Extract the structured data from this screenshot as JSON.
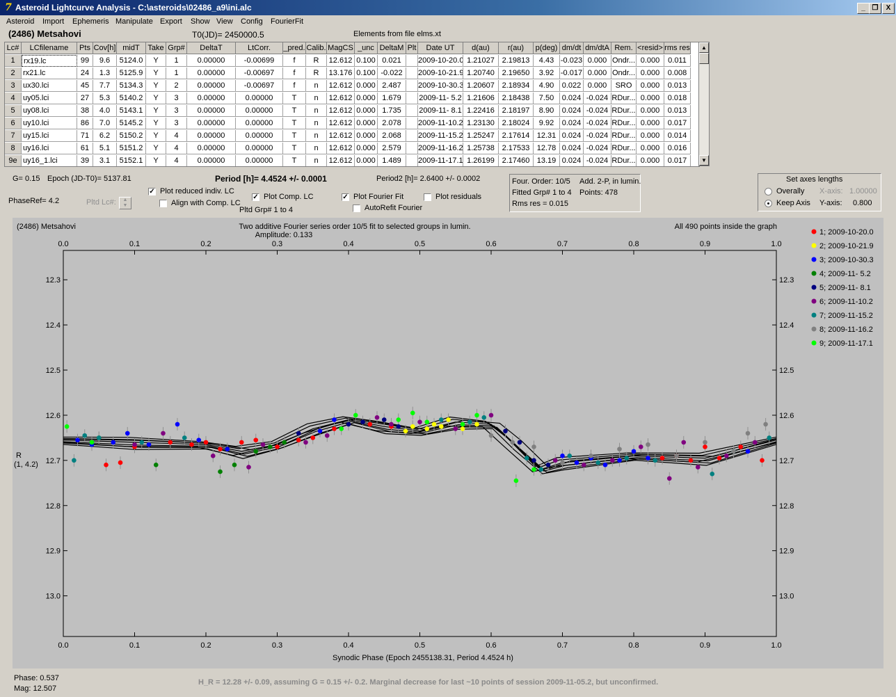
{
  "window": {
    "title": "Asteroid Lightcurve Analysis - C:\\asteroids\\02486_a9\\ini.alc",
    "app_icon_glyph": "7",
    "min_glyph": "_",
    "max_glyph": "❐",
    "close_glyph": "X"
  },
  "menu": [
    "Asteroid",
    "Import",
    "Ephemeris",
    "Manipulate",
    "Export",
    "Show",
    "View",
    "Config",
    "FourierFit"
  ],
  "header": {
    "object": "(2486) Metsahovi",
    "t0": "T0(JD)= 2450000.5",
    "elements": "Elements from file elms.xt"
  },
  "table": {
    "columns": [
      "Lc#",
      "LCfilename",
      "Pts",
      "Cov[h]",
      "midT",
      "Take",
      "Grp#",
      "DeltaT",
      "LtCorr.",
      "_pred.",
      "Calib.",
      "MagCS",
      "_unc",
      "DeltaM",
      "Plt",
      "Date UT",
      "d(au)",
      "r(au)",
      "p(deg)",
      "dm/dt",
      "dm/dtA",
      "Rem.",
      "<resid>",
      "rms res"
    ],
    "rows": [
      [
        "1",
        "rx19.lc",
        "99",
        "9.6",
        "5124.0",
        "Y",
        "1",
        "0.00000",
        "-0.00699",
        "f",
        "R",
        "12.612",
        "0.100",
        "0.021",
        "",
        "2009-10-20.0",
        "1.21027",
        "2.19813",
        "4.43",
        "-0.023",
        "0.000",
        "Ondr...",
        "0.000",
        "0.011"
      ],
      [
        "2",
        "rx21.lc",
        "24",
        "1.3",
        "5125.9",
        "Y",
        "1",
        "0.00000",
        "-0.00697",
        "f",
        "R",
        "13.176",
        "0.100",
        "-0.022",
        "",
        "2009-10-21.9",
        "1.20740",
        "2.19650",
        "3.92",
        "-0.017",
        "0.000",
        "Ondr...",
        "0.000",
        "0.008"
      ],
      [
        "3",
        "ux30.lci",
        "45",
        "7.7",
        "5134.3",
        "Y",
        "2",
        "0.00000",
        "-0.00697",
        "f",
        "n",
        "12.612",
        "0.000",
        "2.487",
        "",
        "2009-10-30.3",
        "1.20607",
        "2.18934",
        "4.90",
        "0.022",
        "0.000",
        "SRO",
        "0.000",
        "0.013"
      ],
      [
        "4",
        "uy05.lci",
        "27",
        "5.3",
        "5140.2",
        "Y",
        "3",
        "0.00000",
        "0.00000",
        "T",
        "n",
        "12.612",
        "0.000",
        "1.679",
        "",
        "2009-11- 5.2",
        "1.21606",
        "2.18438",
        "7.50",
        "0.024",
        "-0.024",
        "RDur...",
        "0.000",
        "0.018"
      ],
      [
        "5",
        "uy08.lci",
        "38",
        "4.0",
        "5143.1",
        "Y",
        "3",
        "0.00000",
        "0.00000",
        "T",
        "n",
        "12.612",
        "0.000",
        "1.735",
        "",
        "2009-11- 8.1",
        "1.22416",
        "2.18197",
        "8.90",
        "0.024",
        "-0.024",
        "RDur...",
        "0.000",
        "0.013"
      ],
      [
        "6",
        "uy10.lci",
        "86",
        "7.0",
        "5145.2",
        "Y",
        "3",
        "0.00000",
        "0.00000",
        "T",
        "n",
        "12.612",
        "0.000",
        "2.078",
        "",
        "2009-11-10.2",
        "1.23130",
        "2.18024",
        "9.92",
        "0.024",
        "-0.024",
        "RDur...",
        "0.000",
        "0.017"
      ],
      [
        "7",
        "uy15.lci",
        "71",
        "6.2",
        "5150.2",
        "Y",
        "4",
        "0.00000",
        "0.00000",
        "T",
        "n",
        "12.612",
        "0.000",
        "2.068",
        "",
        "2009-11-15.2",
        "1.25247",
        "2.17614",
        "12.31",
        "0.024",
        "-0.024",
        "RDur...",
        "0.000",
        "0.014"
      ],
      [
        "8",
        "uy16.lci",
        "61",
        "5.1",
        "5151.2",
        "Y",
        "4",
        "0.00000",
        "0.00000",
        "T",
        "n",
        "12.612",
        "0.000",
        "2.579",
        "",
        "2009-11-16.2",
        "1.25738",
        "2.17533",
        "12.78",
        "0.024",
        "-0.024",
        "RDur...",
        "0.000",
        "0.016"
      ],
      [
        "9e",
        "uy16_1.lci",
        "39",
        "3.1",
        "5152.1",
        "Y",
        "4",
        "0.00000",
        "0.00000",
        "T",
        "n",
        "12.612",
        "0.000",
        "1.489",
        "",
        "2009-11-17.1",
        "1.26199",
        "2.17460",
        "13.19",
        "0.024",
        "-0.024",
        "RDur...",
        "0.000",
        "0.017"
      ]
    ]
  },
  "controls": {
    "g": "G= 0.15",
    "epoch": "Epoch (JD-T0)= 5137.81",
    "period": "Period [h]= 4.4524 +/- 0.0001",
    "period2": "Period2 [h]= 2.6400 +/- 0.0002",
    "phaseref": "PhaseRef= 4.2",
    "pltd_lc": "Pltd Lc#:",
    "plot_reduced": "Plot reduced indiv. LC",
    "align_comp": "Align with Comp. LC",
    "plot_comp": "Plot Comp. LC",
    "pltd_grp": "Pltd Grp#  1   to   4",
    "plot_fourier": "Plot Fourier Fit",
    "autorefit": "AutoRefit Fourier",
    "plot_residuals": "Plot residuals",
    "check_glyph": "✓",
    "spin_up": "▲",
    "spin_down": "▼"
  },
  "fourier_info": {
    "order": "Four. Order: 10/5",
    "add": "Add. 2-P, in lumin.",
    "fitted": "Fitted Grp# 1 to 4",
    "points": "Points: 478",
    "rms": "Rms res     = 0.015"
  },
  "axes_box": {
    "title": "Set axes lengths",
    "overally": "Overally",
    "keep_axis": "Keep Axis",
    "x_label": "X-axis:",
    "x_value": "1.00000",
    "y_label": "Y-axis:",
    "y_value": "0.800"
  },
  "status": {
    "phase": "Phase:  0.537",
    "mag": "Mag:    12.507"
  },
  "footer_note": "H_R = 12.28 +/- 0.09, assuming G = 0.15 +/- 0.2. Marginal decrease for last ~10 points of session 2009-11-05.2, but unconfirmed.",
  "chart_data": {
    "type": "scatter",
    "object_label": "(2486) Metsahovi",
    "title": "Two additive Fourier series order 10/5 fit to selected groups in lumin.",
    "subtitle": "Amplitude: 0.133",
    "note": "All 490 points inside the graph",
    "xlabel": "Synodic Phase (Epoch 2455138.31, Period 4.4524 h)",
    "ylabel": "R",
    "ylabel2": "(1, 4.2)",
    "xlim": [
      0.0,
      1.0
    ],
    "ylim": [
      13.09,
      12.235
    ],
    "y_inverted": true,
    "xticks": [
      "0.0",
      "0.1",
      "0.2",
      "0.3",
      "0.4",
      "0.5",
      "0.6",
      "0.7",
      "0.8",
      "0.9",
      "1.0"
    ],
    "yticks": [
      "12.3",
      "12.4",
      "12.5",
      "12.6",
      "12.7",
      "12.8",
      "12.9",
      "13.0"
    ],
    "grid": false,
    "legend_position": "right",
    "curve_x": [
      0.0,
      0.1,
      0.2,
      0.25,
      0.3,
      0.35,
      0.4,
      0.45,
      0.5,
      0.55,
      0.6,
      0.63,
      0.67,
      0.7,
      0.8,
      0.9,
      1.0
    ],
    "curve_y": [
      12.655,
      12.66,
      12.665,
      12.68,
      12.665,
      12.63,
      12.61,
      12.625,
      12.635,
      12.615,
      12.62,
      12.66,
      12.72,
      12.705,
      12.69,
      12.695,
      12.655
    ],
    "series": [
      {
        "name": "1; 2009-10-20.0",
        "color": "#ff0000",
        "x": [
          0.06,
          0.08,
          0.1,
          0.15,
          0.18,
          0.2,
          0.22,
          0.25,
          0.27,
          0.3,
          0.33,
          0.35,
          0.38,
          0.43,
          0.46,
          0.84,
          0.86,
          0.88,
          0.9,
          0.92,
          0.95,
          0.98
        ],
        "y": [
          12.71,
          12.705,
          12.67,
          12.66,
          12.665,
          12.66,
          12.675,
          12.66,
          12.655,
          12.67,
          12.655,
          12.65,
          12.63,
          12.62,
          12.625,
          12.695,
          12.69,
          12.7,
          12.67,
          12.695,
          12.67,
          12.7
        ]
      },
      {
        "name": "2; 2009-10-21.9",
        "color": "#ffff00",
        "x": [
          0.48,
          0.49,
          0.51,
          0.52,
          0.53,
          0.54,
          0.56,
          0.58
        ],
        "y": [
          12.635,
          12.625,
          12.63,
          12.62,
          12.625,
          12.61,
          12.63,
          12.62
        ]
      },
      {
        "name": "3; 2009-10-30.3",
        "color": "#0000ff",
        "x": [
          0.02,
          0.04,
          0.07,
          0.09,
          0.12,
          0.16,
          0.19,
          0.23,
          0.36,
          0.38,
          0.7,
          0.72,
          0.74,
          0.76,
          0.78,
          0.8,
          0.82,
          0.96
        ],
        "y": [
          12.655,
          12.665,
          12.66,
          12.64,
          12.665,
          12.62,
          12.655,
          12.675,
          12.635,
          12.61,
          12.69,
          12.705,
          12.695,
          12.71,
          12.7,
          12.68,
          12.695,
          12.68
        ]
      },
      {
        "name": "4; 2009-11- 5.2",
        "color": "#008000",
        "x": [
          0.05,
          0.13,
          0.22,
          0.24,
          0.27,
          0.29,
          0.31
        ],
        "y": [
          12.65,
          12.71,
          12.725,
          12.71,
          12.68,
          12.67,
          12.66
        ]
      },
      {
        "name": "5; 2009-11- 8.1",
        "color": "#000080",
        "x": [
          0.33,
          0.4,
          0.42,
          0.45,
          0.47,
          0.62,
          0.64,
          0.66,
          0.68
        ],
        "y": [
          12.64,
          12.62,
          12.615,
          12.61,
          12.625,
          12.635,
          12.66,
          12.7,
          12.71
        ]
      },
      {
        "name": "6; 2009-11-10.2",
        "color": "#800080",
        "x": [
          0.1,
          0.14,
          0.21,
          0.26,
          0.28,
          0.34,
          0.37,
          0.44,
          0.46,
          0.5,
          0.55,
          0.6,
          0.69,
          0.73,
          0.77,
          0.81,
          0.85,
          0.87,
          0.89,
          0.93,
          0.97
        ],
        "y": [
          12.665,
          12.64,
          12.69,
          12.715,
          12.665,
          12.66,
          12.645,
          12.605,
          12.62,
          12.615,
          12.63,
          12.6,
          12.7,
          12.71,
          12.7,
          12.67,
          12.74,
          12.66,
          12.715,
          12.69,
          12.66
        ]
      },
      {
        "name": "7; 2009-11-15.2",
        "color": "#008080",
        "x": [
          0.015,
          0.03,
          0.05,
          0.11,
          0.17,
          0.53,
          0.57,
          0.59,
          0.65,
          0.67,
          0.71,
          0.75,
          0.79,
          0.83,
          0.91,
          0.94,
          0.99
        ],
        "y": [
          12.7,
          12.645,
          12.65,
          12.66,
          12.65,
          12.61,
          12.615,
          12.605,
          12.695,
          12.72,
          12.69,
          12.705,
          12.695,
          12.7,
          12.73,
          12.68,
          12.65
        ]
      },
      {
        "name": "8; 2009-11-16.2",
        "color": "#808080",
        "x": [
          0.6,
          0.63,
          0.66,
          0.7,
          0.74,
          0.78,
          0.82,
          0.86,
          0.9,
          0.94,
          0.96,
          0.985
        ],
        "y": [
          12.645,
          12.66,
          12.67,
          12.705,
          12.69,
          12.675,
          12.665,
          12.69,
          12.66,
          12.68,
          12.64,
          12.62
        ]
      },
      {
        "name": "9; 2009-11-17.1",
        "color": "#00ff00",
        "x": [
          0.005,
          0.04,
          0.39,
          0.41,
          0.47,
          0.49,
          0.51,
          0.56,
          0.58,
          0.635,
          0.66
        ],
        "y": [
          12.625,
          12.66,
          12.63,
          12.6,
          12.61,
          12.595,
          12.615,
          12.62,
          12.6,
          12.745,
          12.72
        ]
      }
    ]
  }
}
